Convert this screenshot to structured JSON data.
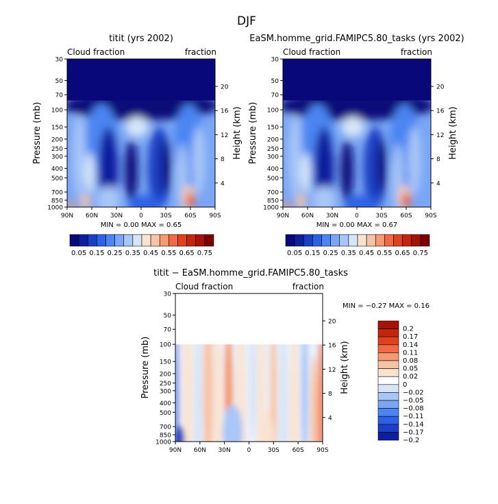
{
  "figure": {
    "season_title": "DJF"
  },
  "colors": {
    "main_scale": [
      "#08087a",
      "#0d1f9e",
      "#1a3fc4",
      "#2e62e6",
      "#4c85f2",
      "#7aa6f5",
      "#a8c6f7",
      "#d6e6f8",
      "#fbe3d2",
      "#f8c4a6",
      "#f59a72",
      "#f06a45",
      "#e0421f",
      "#c2260f",
      "#a51206",
      "#7a0000"
    ],
    "diff_scale": [
      "#0d1f9e",
      "#1a3fc4",
      "#2e62e6",
      "#4c85f2",
      "#7aa6f5",
      "#a8c6f7",
      "#d6e6f8",
      "#ffffff",
      "#fbe3d2",
      "#f8c4a6",
      "#f59a72",
      "#f06a45",
      "#e0421f",
      "#c2260f",
      "#a51206"
    ]
  },
  "chart_data": [
    {
      "type": "heatmap",
      "title": "titit (yrs 2002)",
      "left_label": "Cloud fraction",
      "right_label": "fraction",
      "xlabel": "",
      "ylabel": "Pressure (mb)",
      "y2label": "Height (km)",
      "x_ticks": [
        "90N",
        "60N",
        "30N",
        "0",
        "30S",
        "60S",
        "90S"
      ],
      "x_values": [
        90,
        60,
        30,
        0,
        -30,
        -60,
        -90
      ],
      "y_ticks": [
        30,
        50,
        70,
        100,
        150,
        200,
        250,
        300,
        400,
        500,
        700,
        850,
        1000
      ],
      "y_ticks_right": [
        20,
        16,
        12,
        8,
        4
      ],
      "ylim": [
        1000,
        30
      ],
      "stats": "MIN =    0.00    MAX =    0.65",
      "min": 0.0,
      "max": 0.65,
      "colorbar_labels": [
        "0.05",
        "0.15",
        "0.25",
        "0.35",
        "0.45",
        "0.55",
        "0.65",
        "0.75"
      ]
    },
    {
      "type": "heatmap",
      "title": "EaSM.homme_grid.FAMIPC5.80_tasks (yrs 2002)",
      "left_label": "Cloud fraction",
      "right_label": "fraction",
      "xlabel": "",
      "ylabel": "Pressure (mb)",
      "y2label": "Height (km)",
      "x_ticks": [
        "90N",
        "60N",
        "30N",
        "0",
        "30S",
        "60S",
        "90S"
      ],
      "x_values": [
        90,
        60,
        30,
        0,
        -30,
        -60,
        -90
      ],
      "y_ticks": [
        30,
        50,
        70,
        100,
        150,
        200,
        250,
        300,
        400,
        500,
        700,
        850,
        1000
      ],
      "y_ticks_right": [
        20,
        16,
        12,
        8,
        4
      ],
      "ylim": [
        1000,
        30
      ],
      "stats": "MIN =    0.00    MAX =    0.67",
      "min": 0.0,
      "max": 0.67,
      "colorbar_labels": [
        "0.05",
        "0.15",
        "0.25",
        "0.35",
        "0.45",
        "0.55",
        "0.65",
        "0.75"
      ]
    },
    {
      "type": "heatmap",
      "title": "titit − EaSM.homme_grid.FAMIPC5.80_tasks",
      "left_label": "Cloud fraction",
      "right_label": "fraction",
      "xlabel": "",
      "ylabel": "Pressure (mb)",
      "y2label": "Height (km)",
      "x_ticks": [
        "90N",
        "60N",
        "30N",
        "0",
        "30S",
        "60S",
        "90S"
      ],
      "x_values": [
        90,
        60,
        30,
        0,
        -30,
        -60,
        -90
      ],
      "y_ticks": [
        30,
        50,
        70,
        100,
        150,
        200,
        250,
        300,
        400,
        500,
        700,
        850,
        1000
      ],
      "y_ticks_right": [
        20,
        16,
        12,
        8,
        4
      ],
      "ylim": [
        1000,
        30
      ],
      "stats": "MIN =   −0.27    MAX =    0.16",
      "min": -0.27,
      "max": 0.16,
      "colorbar_labels": [
        "0.2",
        "0.17",
        "0.14",
        "0.11",
        "0.08",
        "0.05",
        "0.02",
        "0",
        "−0.02",
        "−0.05",
        "−0.08",
        "−0.11",
        "−0.14",
        "−0.17",
        "−0.2"
      ]
    }
  ]
}
